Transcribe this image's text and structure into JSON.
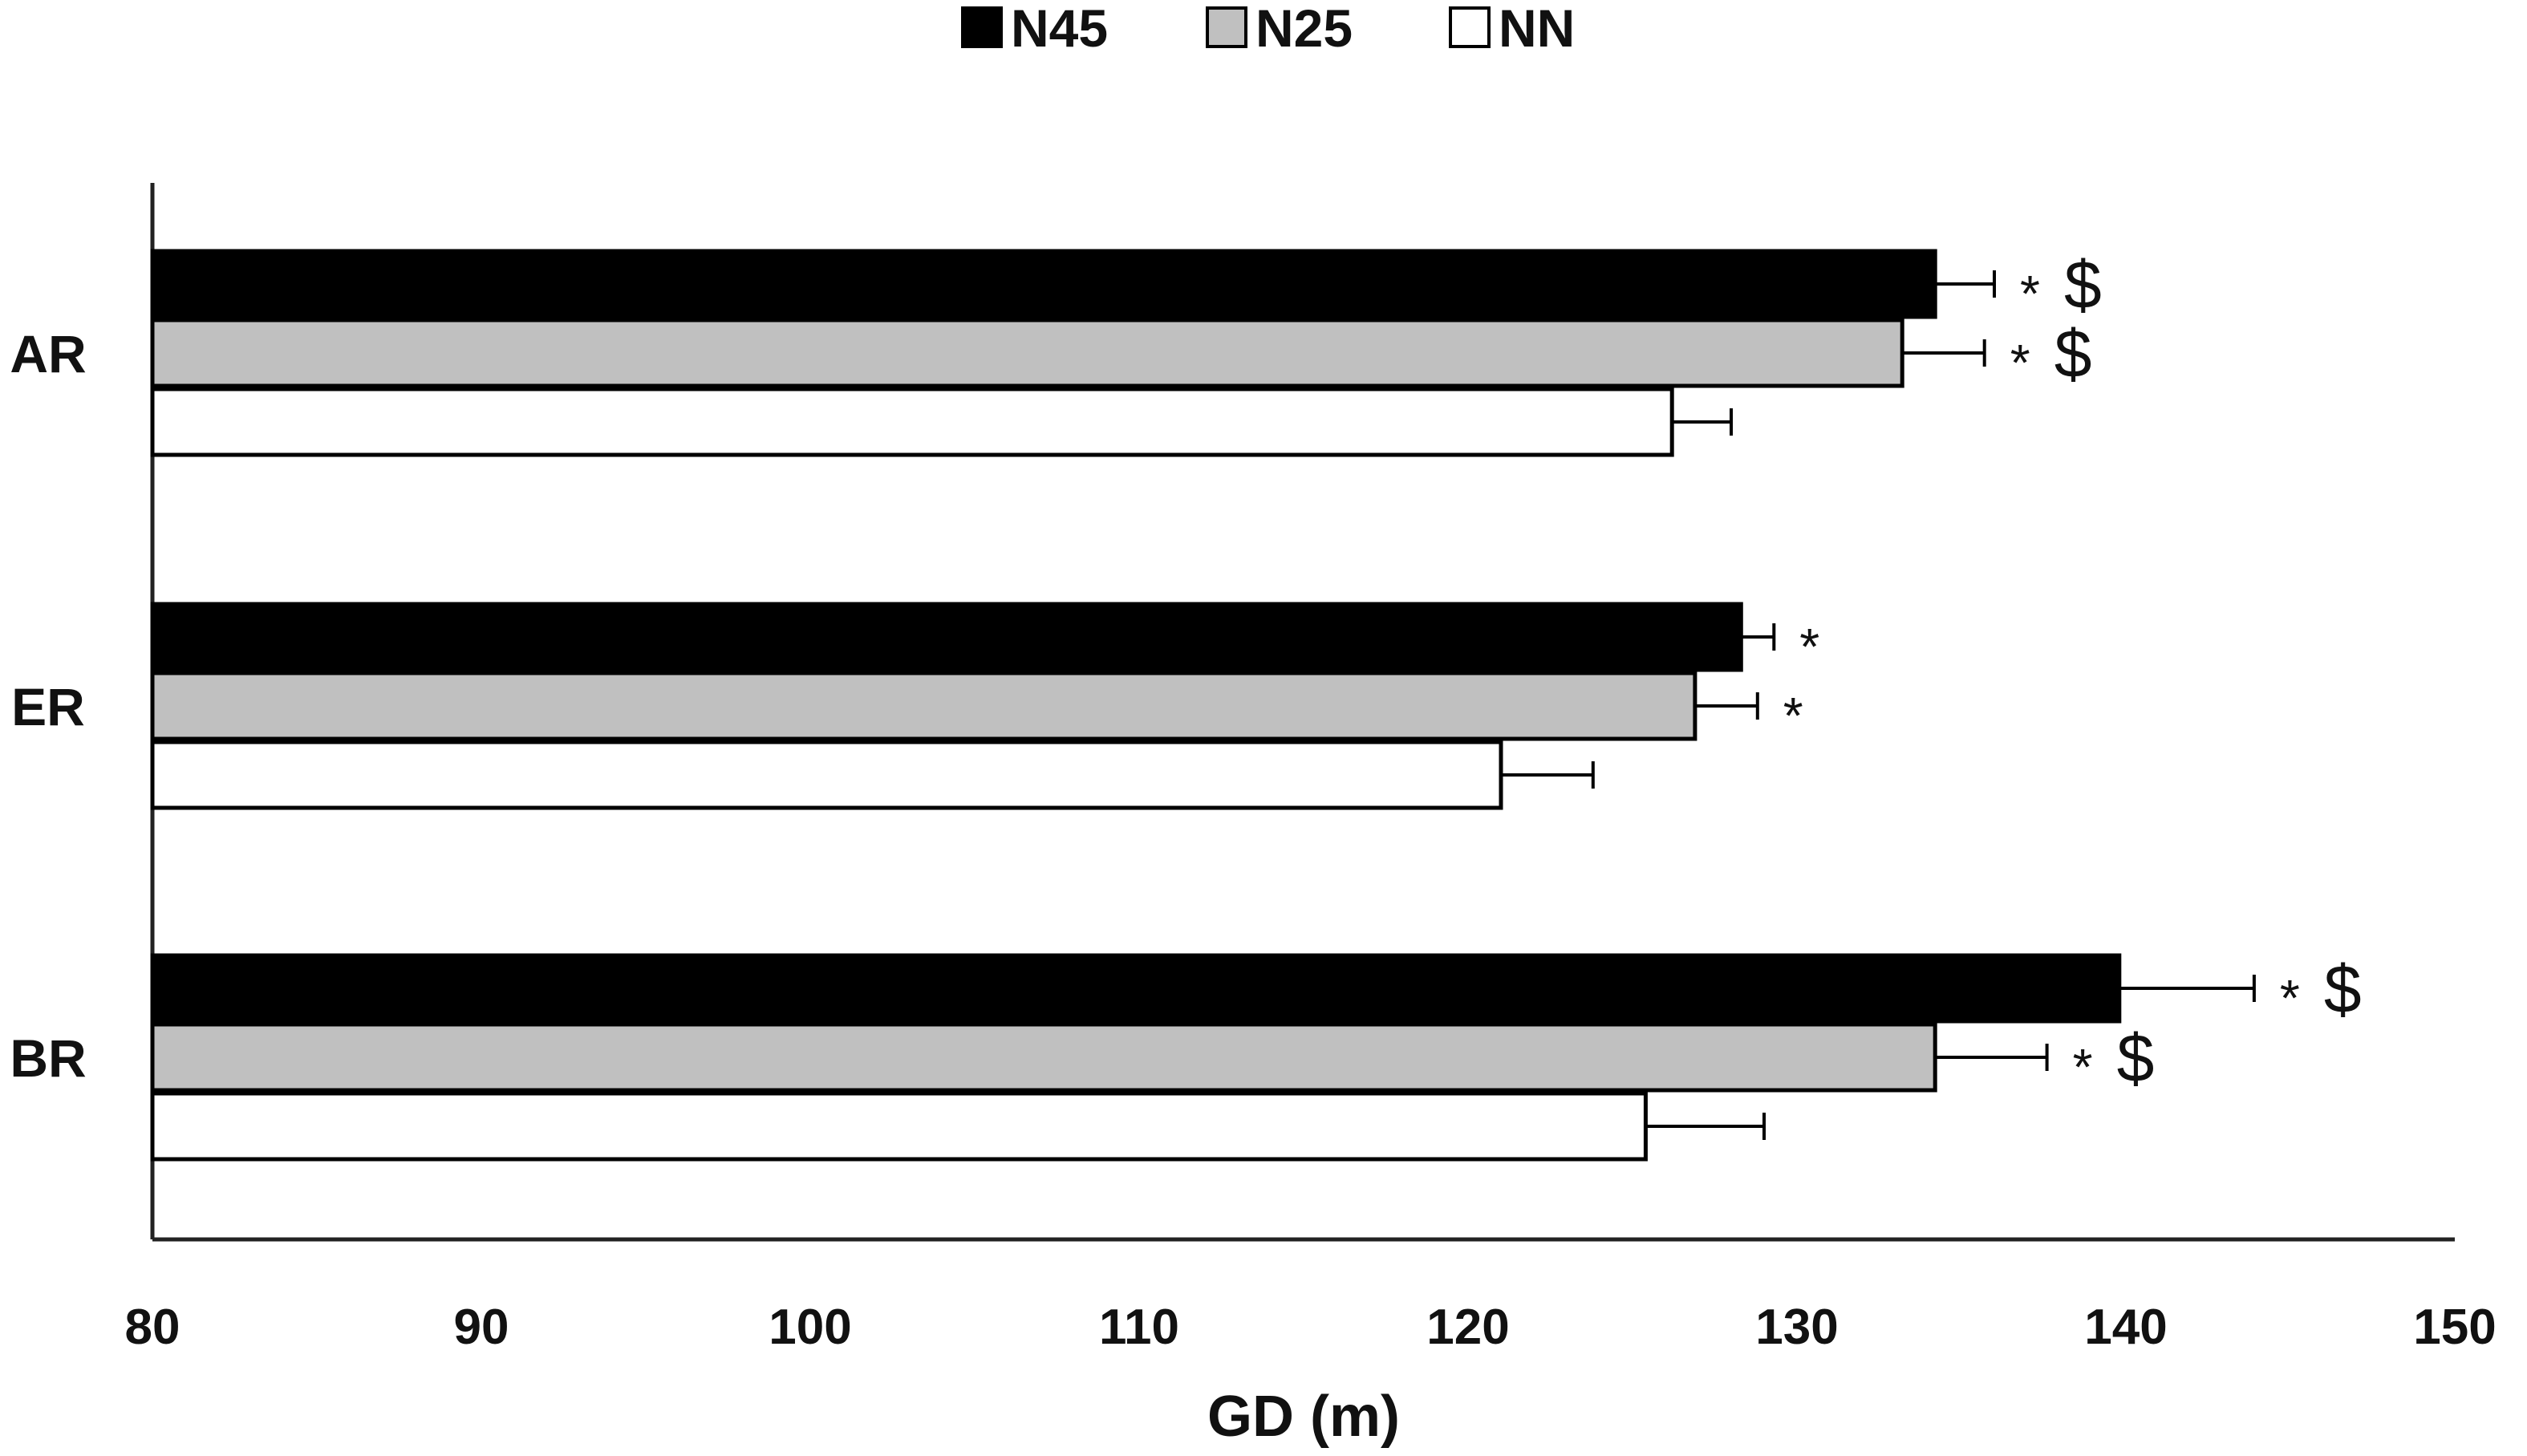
{
  "chart_data": {
    "type": "bar",
    "orientation": "horizontal",
    "categories": [
      "AR",
      "ER",
      "BR"
    ],
    "series": [
      {
        "name": "N45",
        "color": "#000000",
        "values": [
          134.2,
          128.3,
          139.8
        ],
        "errors": [
          1.8,
          1.0,
          4.1
        ],
        "annotations": [
          "* $",
          "*",
          "* $"
        ]
      },
      {
        "name": "N25",
        "color": "#c0c0c0",
        "values": [
          133.2,
          126.9,
          134.2
        ],
        "errors": [
          2.5,
          1.9,
          3.4
        ],
        "annotations": [
          "* $",
          "*",
          "* $"
        ]
      },
      {
        "name": "NN",
        "color": "#ffffff",
        "values": [
          126.2,
          121.0,
          125.4
        ],
        "errors": [
          1.8,
          2.8,
          3.6
        ],
        "annotations": [
          "",
          "",
          ""
        ]
      }
    ],
    "xlabel": "GD (m)",
    "ylabel": "",
    "title": "",
    "xlim": [
      80,
      150
    ],
    "xticks": [
      "80",
      "90",
      "100",
      "110",
      "120",
      "130",
      "140",
      "150"
    ],
    "grid": false,
    "legend_position": "top-center"
  }
}
